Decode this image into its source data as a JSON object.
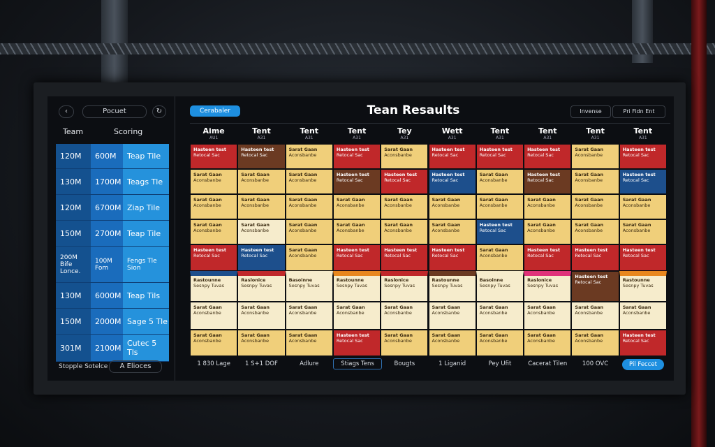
{
  "sidebar": {
    "title": "Pocuet",
    "headers": [
      "Team",
      "Scoring"
    ],
    "rows": [
      [
        "120M",
        "600M",
        "Teap Tile"
      ],
      [
        "130M",
        "1700M",
        "Teags Tle"
      ],
      [
        "120M",
        "6700M",
        "Ziap Tile"
      ],
      [
        "150M",
        "2700M",
        "Teap Tile"
      ],
      [
        "200M Bife Lonce.",
        "100M Fom",
        "Fengs Tle Sion"
      ],
      [
        "130M",
        "6000M",
        "Teap Tils"
      ],
      [
        "150M",
        "2000M",
        "Sage 5 Tle"
      ],
      [
        "301M",
        "2100M",
        "Cutec 5 Tls"
      ]
    ],
    "footer": [
      "Stopple Sotelce",
      "A Elioces"
    ]
  },
  "main": {
    "button": "Cerabaler",
    "title": "Tean Resaults",
    "filters": [
      "Invense",
      "Pri Fidn Ent"
    ],
    "columns": [
      {
        "name": "Aime",
        "sub": "AU1"
      },
      {
        "name": "Tent",
        "sub": "A31"
      },
      {
        "name": "Tent",
        "sub": "A31"
      },
      {
        "name": "Tent",
        "sub": "A31"
      },
      {
        "name": "Tey",
        "sub": "A31"
      },
      {
        "name": "Wett",
        "sub": "A31"
      },
      {
        "name": "Tent",
        "sub": "A31"
      },
      {
        "name": "Tent",
        "sub": "A31"
      },
      {
        "name": "Tent",
        "sub": "A31"
      },
      {
        "name": "Tent",
        "sub": "A31"
      }
    ],
    "cells": [
      [
        {
          "color": "#c0282a",
          "t": "Hasteen test",
          "s": "Retocal Sac"
        },
        {
          "color": "#6b3a22",
          "t": "Hasteen test",
          "s": "Retocal Sac"
        },
        {
          "color": "#f0cf7a",
          "t": "Sarat Gaan",
          "s": "Aconsbanbe"
        },
        {
          "color": "#c0282a",
          "t": "Hasteen test",
          "s": "Retocal Sac"
        },
        {
          "color": "#f0cf7a",
          "t": "Sarat Gaan",
          "s": "Aconsbanbe"
        },
        {
          "color": "#c0282a",
          "t": "Hasteen test",
          "s": "Retocal Sac"
        },
        {
          "color": "#c0282a",
          "t": "Hasteen test",
          "s": "Retocal Sac"
        },
        {
          "color": "#c0282a",
          "t": "Hasteen test",
          "s": "Retocal Sac"
        },
        {
          "color": "#f0cf7a",
          "t": "Sarat Gaan",
          "s": "Aconsbanbe"
        },
        {
          "color": "#c0282a",
          "t": "Hasteen test",
          "s": "Retocal Sac"
        }
      ],
      [
        {
          "color": "#f0cf7a",
          "t": "Sarat Gaan",
          "s": "Aconsbanbe"
        },
        {
          "color": "#f0cf7a",
          "t": "Sarat Gaan",
          "s": "Aconsbanbe"
        },
        {
          "color": "#f0cf7a",
          "t": "Sarat Gaan",
          "s": "Aconsbanbe"
        },
        {
          "color": "#6b3a22",
          "t": "Hasteen test",
          "s": "Retocal Sac"
        },
        {
          "color": "#c0282a",
          "t": "Hasteen test",
          "s": "Retocal Sac"
        },
        {
          "color": "#1d4f8c",
          "t": "Hasteen test",
          "s": "Retocal Sac"
        },
        {
          "color": "#f0cf7a",
          "t": "Sarat Gaan",
          "s": "Aconsbanbe"
        },
        {
          "color": "#6b3a22",
          "t": "Hasteen test",
          "s": "Retocal Sac"
        },
        {
          "color": "#f0cf7a",
          "t": "Sarat Gaan",
          "s": "Aconsbanbe"
        },
        {
          "color": "#1d4f8c",
          "t": "Hasteen test",
          "s": "Retocal Sac"
        }
      ],
      [
        {
          "color": "#f0cf7a",
          "t": "Sarat Gaan",
          "s": "Aconsbanbe"
        },
        {
          "color": "#f0cf7a",
          "t": "Sarat Gaan",
          "s": "Aconsbanbe"
        },
        {
          "color": "#f0cf7a",
          "t": "Sarat Gaan",
          "s": "Aconsbanbe"
        },
        {
          "color": "#f0cf7a",
          "t": "Sarat Gaan",
          "s": "Aconsbanbe"
        },
        {
          "color": "#f0cf7a",
          "t": "Sarat Gaan",
          "s": "Aconsbanbe"
        },
        {
          "color": "#f0cf7a",
          "t": "Sarat Gaan",
          "s": "Aconsbanbe"
        },
        {
          "color": "#f0cf7a",
          "t": "Sarat Gaan",
          "s": "Aconsbanbe"
        },
        {
          "color": "#f0cf7a",
          "t": "Sarat Gaan",
          "s": "Aconsbanbe"
        },
        {
          "color": "#f0cf7a",
          "t": "Sarat Gaan",
          "s": "Aconsbanbe"
        },
        {
          "color": "#f0cf7a",
          "t": "Sarat Gaan",
          "s": "Aconsbanbe"
        }
      ],
      [
        {
          "color": "#f0cf7a",
          "t": "Sarat Gaan",
          "s": "Aconsbanbe"
        },
        {
          "color": "#f6eccc",
          "t": "Sarat Gaan",
          "s": "Aconsbanbe"
        },
        {
          "color": "#f0cf7a",
          "t": "Sarat Gaan",
          "s": "Aconsbanbe"
        },
        {
          "color": "#f0cf7a",
          "t": "Sarat Gaan",
          "s": "Aconsbanbe"
        },
        {
          "color": "#f0cf7a",
          "t": "Sarat Gaan",
          "s": "Aconsbanbe"
        },
        {
          "color": "#f0cf7a",
          "t": "Sarat Gaan",
          "s": "Aconsbanbe"
        },
        {
          "color": "#1d4f8c",
          "t": "Hasteen test",
          "s": "Retocal Sac"
        },
        {
          "color": "#f0cf7a",
          "t": "Sarat Gaan",
          "s": "Aconsbanbe"
        },
        {
          "color": "#f0cf7a",
          "t": "Sarat Gaan",
          "s": "Aconsbanbe"
        },
        {
          "color": "#f0cf7a",
          "t": "Sarat Gaan",
          "s": "Aconsbanbe"
        }
      ],
      [
        {
          "color": "#c0282a",
          "t": "Hasteen test",
          "s": "Retocal Sac"
        },
        {
          "color": "#1d4f8c",
          "t": "Hasteen test",
          "s": "Retocal Sac"
        },
        {
          "color": "#f0cf7a",
          "t": "Sarat Gaan",
          "s": "Aconsbanbe"
        },
        {
          "color": "#c0282a",
          "t": "Hasteen test",
          "s": "Retocal Sac"
        },
        {
          "color": "#c0282a",
          "t": "Hasteen test",
          "s": "Retocal Sac"
        },
        {
          "color": "#c0282a",
          "t": "Hasteen test",
          "s": "Retocal Sac"
        },
        {
          "color": "#f0cf7a",
          "t": "Sarat Gaan",
          "s": "Aconsbanbe"
        },
        {
          "color": "#c0282a",
          "t": "Hasteen test",
          "s": "Retocal Sac"
        },
        {
          "color": "#c0282a",
          "t": "Hasteen test",
          "s": "Retocal Sac"
        },
        {
          "color": "#c0282a",
          "t": "Hasteen test",
          "s": "Retocal Sac"
        }
      ],
      [
        {
          "color": "#f6eccc",
          "accent": "#1d4f8c",
          "t": "Rastounne",
          "s": "Sesnpy Tuvas"
        },
        {
          "color": "#f6eccc",
          "accent": "#c0282a",
          "t": "Raslonice",
          "s": "Sesnpy Tuvas"
        },
        {
          "color": "#f6eccc",
          "accent": "#f6eccc",
          "t": "Basoinne",
          "s": "Sesnpy Tuvas"
        },
        {
          "color": "#f6eccc",
          "accent": "#e8871e",
          "t": "Rastounne",
          "s": "Sesnpy Tuvas"
        },
        {
          "color": "#f6eccc",
          "accent": "#c0282a",
          "t": "Raslonice",
          "s": "Sesnpy Tuvas"
        },
        {
          "color": "#f6eccc",
          "accent": "#6b3a22",
          "t": "Rastounne",
          "s": "Sesnpy Tuvas"
        },
        {
          "color": "#f6eccc",
          "accent": "#f6eccc",
          "t": "Basoinne",
          "s": "Sesnpy Tuvas"
        },
        {
          "color": "#f6eccc",
          "accent": "#e0327a",
          "t": "Raslonice",
          "s": "Sesnpy Tuvas"
        },
        {
          "color": "#6b3a22",
          "t": "Hasteen test",
          "s": "Retocal Sac"
        },
        {
          "color": "#f6eccc",
          "accent": "#e8871e",
          "t": "Rastounne",
          "s": "Sesnpy Tuvas"
        }
      ],
      [
        {
          "color": "#f6eccc",
          "t": "Sarat Gaan",
          "s": "Aconsbanbe"
        },
        {
          "color": "#f6eccc",
          "t": "Sarat Gaan",
          "s": "Aconsbanbe"
        },
        {
          "color": "#f6eccc",
          "t": "Sarat Gaan",
          "s": "Aconsbanbe"
        },
        {
          "color": "#f6eccc",
          "t": "Sarat Gaan",
          "s": "Aconsbanbe"
        },
        {
          "color": "#f6eccc",
          "t": "Sarat Gaan",
          "s": "Aconsbanbe"
        },
        {
          "color": "#f6eccc",
          "t": "Sarat Gaan",
          "s": "Aconsbanbe"
        },
        {
          "color": "#f6eccc",
          "t": "Sarat Gaan",
          "s": "Aconsbanbe"
        },
        {
          "color": "#f6eccc",
          "t": "Sarat Gaan",
          "s": "Aconsbanbe"
        },
        {
          "color": "#f6eccc",
          "t": "Sarat Gaan",
          "s": "Aconsbanbe"
        },
        {
          "color": "#f6eccc",
          "t": "Sarat Gaan",
          "s": "Aconsbanbe"
        }
      ],
      [
        {
          "color": "#f0cf7a",
          "t": "Sarat Gaan",
          "s": "Aconsbanbe"
        },
        {
          "color": "#f0cf7a",
          "t": "Sarat Gaan",
          "s": "Aconsbanbe"
        },
        {
          "color": "#f0cf7a",
          "t": "Sarat Gaan",
          "s": "Aconsbanbe"
        },
        {
          "color": "#c0282a",
          "t": "Hasteen test",
          "s": "Retocal Sac"
        },
        {
          "color": "#f0cf7a",
          "t": "Sarat Gaan",
          "s": "Aconsbanbe"
        },
        {
          "color": "#f0cf7a",
          "t": "Sarat Gaan",
          "s": "Aconsbanbe"
        },
        {
          "color": "#f0cf7a",
          "t": "Sarat Gaan",
          "s": "Aconsbanbe"
        },
        {
          "color": "#f0cf7a",
          "t": "Sarat Gaan",
          "s": "Aconsbanbe"
        },
        {
          "color": "#f0cf7a",
          "t": "Sarat Gaan",
          "s": "Aconsbanbe"
        },
        {
          "color": "#c0282a",
          "t": "Hasteen test",
          "s": "Retocal Sac"
        }
      ]
    ],
    "footer": [
      "1 830 Lage",
      "1 S+1 DOF",
      "Adlure",
      "Stiags Tens",
      "Bougts",
      "1 Liganid",
      "Pey Ufit",
      "Cacerat Tilen",
      "100 OVC"
    ],
    "action": "Pil Feccet"
  }
}
